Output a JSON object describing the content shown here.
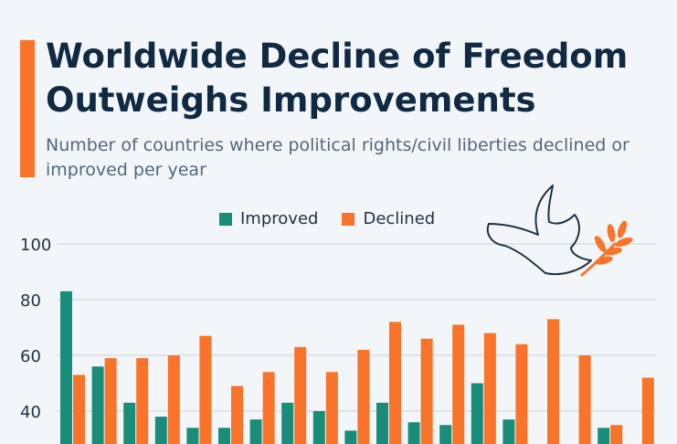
{
  "header": {
    "title": "Worldwide Decline of Freedom Outweighs Improvements",
    "subtitle": "Number of countries where political rights/civil liberties declined or improved per year"
  },
  "colors": {
    "improved": "#1a8c7a",
    "declined": "#f9732a",
    "accent": "#f9732a",
    "grid": "#c9d1d9",
    "dove": "#1e3246"
  },
  "icons": [
    "dove-with-olive-branch-icon"
  ],
  "chart_data": {
    "type": "bar",
    "title": "Worldwide Decline of Freedom Outweighs Improvements",
    "subtitle": "Number of countries where political rights/civil liberties declined or improved per year",
    "legend_position": "top",
    "grid": true,
    "yticks": [
      40,
      60,
      80,
      100
    ],
    "ylim": [
      30,
      100
    ],
    "series": [
      {
        "name": "Improved",
        "values": [
          83,
          56,
          43,
          38,
          34,
          34,
          37,
          43,
          40,
          33,
          43,
          36,
          35,
          50,
          37,
          null,
          null,
          34,
          null
        ]
      },
      {
        "name": "Declined",
        "values": [
          53,
          59,
          59,
          60,
          67,
          49,
          54,
          63,
          54,
          62,
          72,
          66,
          71,
          68,
          64,
          73,
          60,
          35,
          52
        ]
      }
    ]
  }
}
